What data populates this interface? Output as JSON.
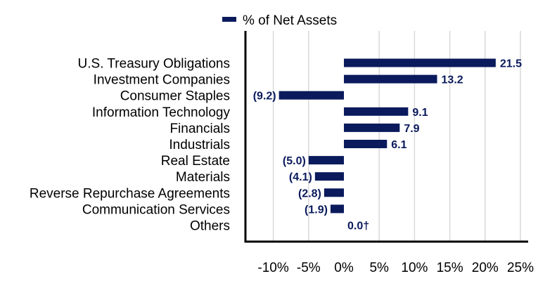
{
  "chart_data": {
    "type": "bar",
    "orientation": "horizontal",
    "legend": "% of Net Assets",
    "legend_position": "top-center",
    "categories": [
      "U.S. Treasury Obligations",
      "Investment Companies",
      "Consumer Staples",
      "Information Technology",
      "Financials",
      "Industrials",
      "Real Estate",
      "Materials",
      "Reverse Repurchase Agreements",
      "Communication Services",
      "Others"
    ],
    "values": [
      21.5,
      13.2,
      -9.2,
      9.1,
      7.9,
      6.1,
      -5.0,
      -4.1,
      -2.8,
      -1.9,
      0.0
    ],
    "value_labels": [
      "21.5",
      "13.2",
      "(9.2)",
      "9.1",
      "7.9",
      "6.1",
      "(5.0)",
      "(4.1)",
      "(2.8)",
      "(1.9)",
      "0.0†"
    ],
    "x_ticks": [
      "-10%",
      "-5%",
      "0%",
      "5%",
      "10%",
      "15%",
      "20%",
      "25%"
    ],
    "x_tick_values": [
      -10,
      -5,
      0,
      5,
      10,
      15,
      20,
      25
    ],
    "xlim": [
      -14,
      26
    ],
    "grid": "vertical",
    "colors": {
      "bar": "#0a1a5c",
      "label": "#0a1a5c",
      "grid": "#d9d9d9",
      "axis": "#000000"
    }
  }
}
